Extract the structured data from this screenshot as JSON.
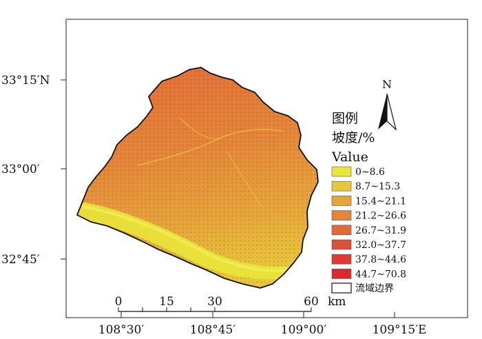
{
  "map": {
    "lat_labels": [
      "33°15′N",
      "33°00′",
      "32°45′"
    ],
    "lon_labels": [
      "108°30′",
      "108°45′",
      "109°00′",
      "109°15′E"
    ],
    "north_arrow_label": "N",
    "legend": {
      "title_line1": "图例",
      "title_line2": "坡度/%",
      "title_line3": "Value",
      "classes": [
        {
          "label": "0~8.6",
          "color": "#e8e63a"
        },
        {
          "label": "8.7~15.3",
          "color": "#e6c83a"
        },
        {
          "label": "15.4~21.1",
          "color": "#e4a63a"
        },
        {
          "label": "21.2~26.6",
          "color": "#e2863a"
        },
        {
          "label": "26.7~31.9",
          "color": "#e06a38"
        },
        {
          "label": "32.0~37.7",
          "color": "#de5036"
        },
        {
          "label": "37.8~44.6",
          "color": "#dc3a32"
        },
        {
          "label": "44.7~70.8",
          "color": "#d92a2e"
        }
      ],
      "boundary_label": "流域边界"
    },
    "scale_bar": {
      "ticks": [
        "0",
        "15",
        "30",
        "60"
      ],
      "unit": "km"
    }
  }
}
